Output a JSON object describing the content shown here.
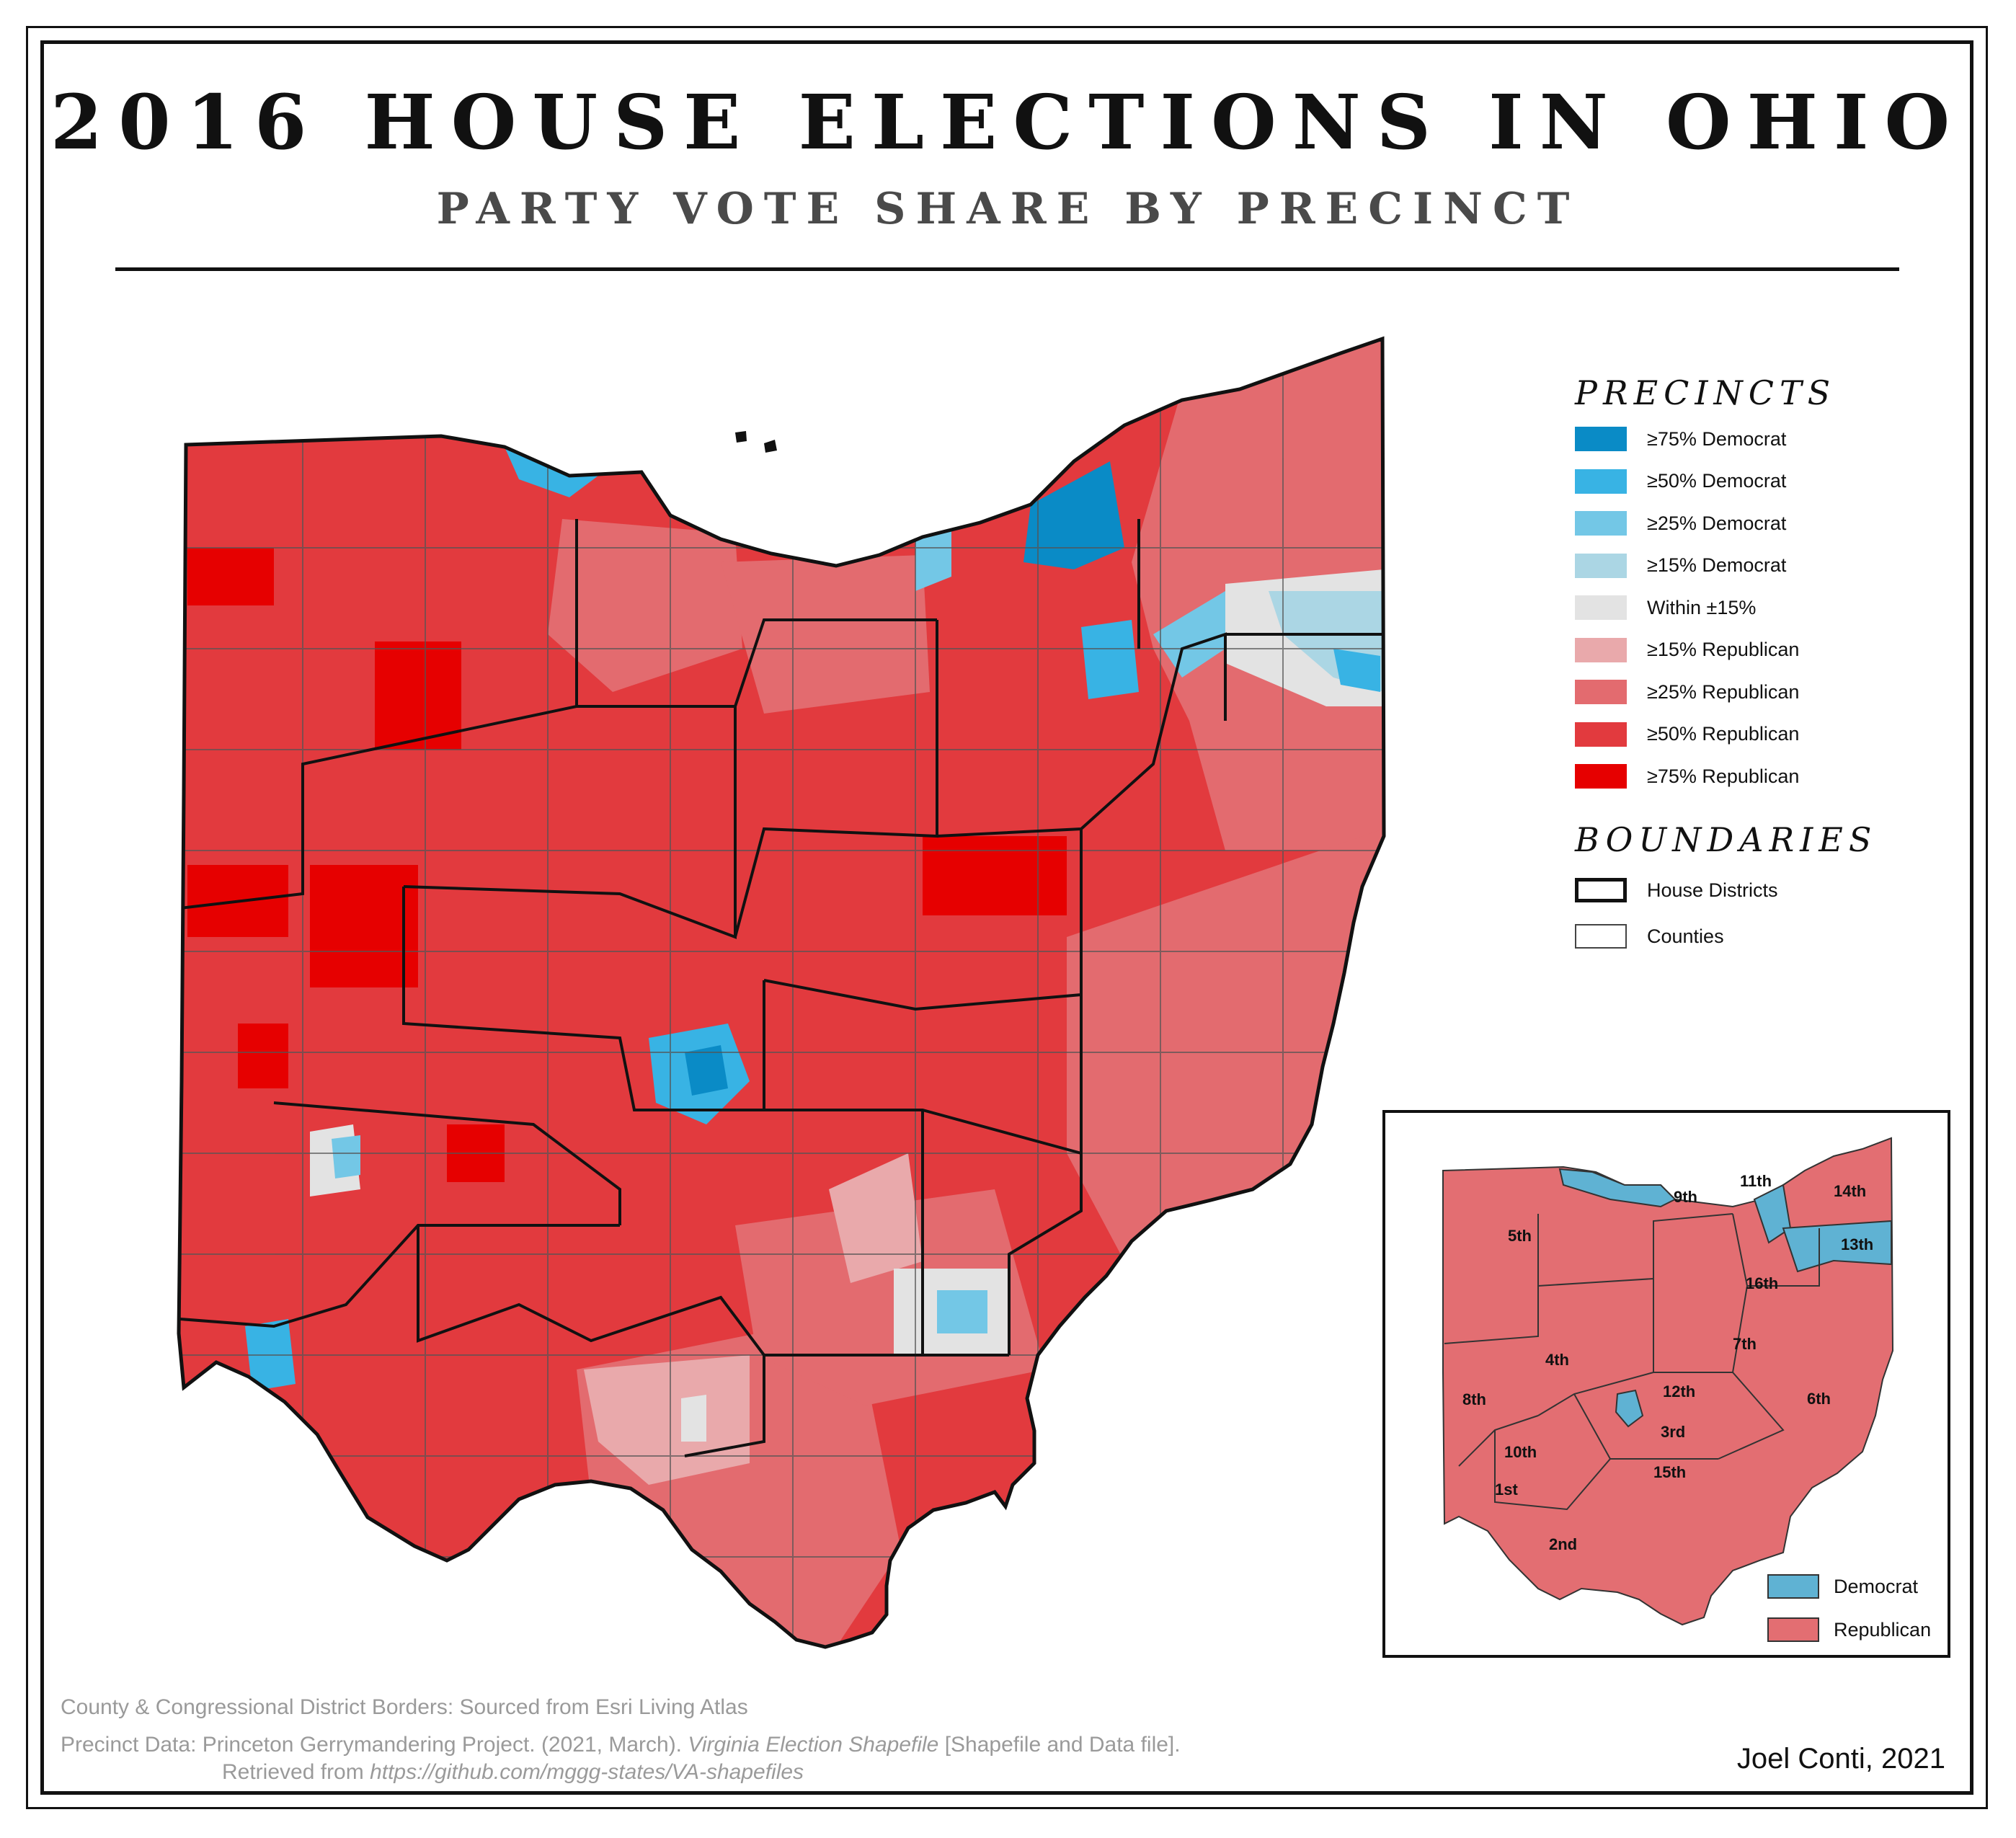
{
  "title": "2016 HOUSE ELECTIONS IN OHIO",
  "subtitle": "PARTY VOTE SHARE BY PRECINCT",
  "legend": {
    "precincts_heading": "PRECINCTS",
    "precincts": [
      {
        "label": "≥75% Democrat",
        "color": "#0a8bc6"
      },
      {
        "label": "≥50% Democrat",
        "color": "#38b3e4"
      },
      {
        "label": "≥25% Democrat",
        "color": "#73c7e6"
      },
      {
        "label": "≥15% Democrat",
        "color": "#abd6e4"
      },
      {
        "label": "Within ±15%",
        "color": "#e3e3e3"
      },
      {
        "label": "≥15% Republican",
        "color": "#e9a9ab"
      },
      {
        "label": "≥25% Republican",
        "color": "#e36b6f"
      },
      {
        "label": "≥50% Republican",
        "color": "#e23a3e"
      },
      {
        "label": "≥75% Republican",
        "color": "#e60000"
      }
    ],
    "boundaries_heading": "BOUNDARIES",
    "boundaries": [
      {
        "label": "House Districts"
      },
      {
        "label": "Counties"
      }
    ]
  },
  "inset": {
    "districts": [
      "1st",
      "2nd",
      "3rd",
      "4th",
      "5th",
      "6th",
      "7th",
      "8th",
      "9th",
      "10th",
      "11th",
      "12th",
      "13th",
      "14th",
      "15th",
      "16th"
    ],
    "legend": [
      {
        "label": "Democrat",
        "color": "#5fb2d3"
      },
      {
        "label": "Republican",
        "color": "#e36e72"
      }
    ]
  },
  "sources": {
    "borders": "County & Congressional District Borders: Sourced from Esri Living Atlas",
    "precinct_prefix": "Precinct Data: Princeton Gerrymandering Project. (2021, March). ",
    "precinct_title": "Virginia Election Shapefile",
    "precinct_suffix": " [Shapefile and Data file].",
    "retrieved_prefix": "Retrieved from ",
    "retrieved_url": "https://github.com/mggg-states/VA-shapefiles"
  },
  "credit": "Joel Conti, 2021"
}
